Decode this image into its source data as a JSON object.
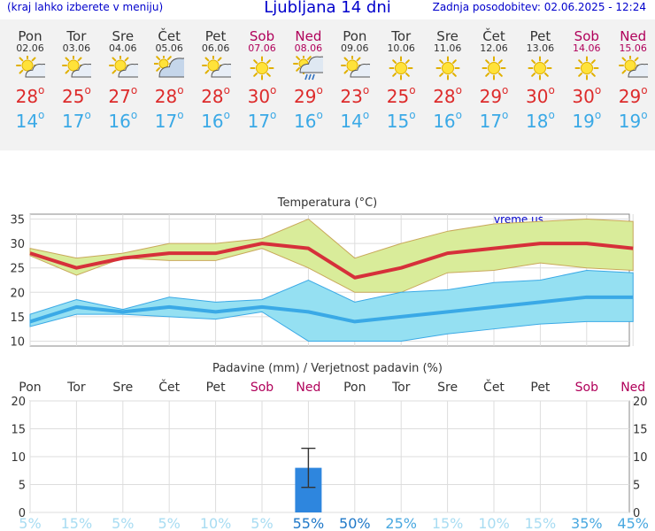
{
  "header": {
    "left_note": "(kraj lahko izberete v meniju)",
    "title": "Ljubljana 14 dni",
    "updated": "Zadnja posodobitev: 02.06.2025 - 12:24"
  },
  "days": [
    {
      "name": "Pon",
      "date": "02.06",
      "weekend": false,
      "icon": "sun-cloud-icon",
      "tmax": "28",
      "tmin": "14"
    },
    {
      "name": "Tor",
      "date": "03.06",
      "weekend": false,
      "icon": "sun-cloud-icon",
      "tmax": "25",
      "tmin": "17"
    },
    {
      "name": "Sre",
      "date": "04.06",
      "weekend": false,
      "icon": "sun-cloud-icon",
      "tmax": "27",
      "tmin": "16"
    },
    {
      "name": "Čet",
      "date": "05.06",
      "weekend": false,
      "icon": "cloud-sun-icon",
      "tmax": "28",
      "tmin": "17"
    },
    {
      "name": "Pet",
      "date": "06.06",
      "weekend": false,
      "icon": "sun-cloud-icon",
      "tmax": "28",
      "tmin": "16"
    },
    {
      "name": "Sob",
      "date": "07.06",
      "weekend": true,
      "icon": "sun-icon",
      "tmax": "30",
      "tmin": "17"
    },
    {
      "name": "Ned",
      "date": "08.06",
      "weekend": true,
      "icon": "rain-cloud-icon",
      "tmax": "29",
      "tmin": "16"
    },
    {
      "name": "Pon",
      "date": "09.06",
      "weekend": false,
      "icon": "sun-cloud-icon",
      "tmax": "23",
      "tmin": "14"
    },
    {
      "name": "Tor",
      "date": "10.06",
      "weekend": false,
      "icon": "sun-icon",
      "tmax": "25",
      "tmin": "15"
    },
    {
      "name": "Sre",
      "date": "11.06",
      "weekend": false,
      "icon": "sun-icon",
      "tmax": "28",
      "tmin": "16"
    },
    {
      "name": "Čet",
      "date": "12.06",
      "weekend": false,
      "icon": "sun-icon",
      "tmax": "29",
      "tmin": "17"
    },
    {
      "name": "Pet",
      "date": "13.06",
      "weekend": false,
      "icon": "sun-icon",
      "tmax": "30",
      "tmin": "18"
    },
    {
      "name": "Sob",
      "date": "14.06",
      "weekend": true,
      "icon": "sun-icon",
      "tmax": "30",
      "tmin": "19"
    },
    {
      "name": "Ned",
      "date": "15.06",
      "weekend": true,
      "icon": "sun-cloud-icon",
      "tmax": "29",
      "tmin": "19"
    }
  ],
  "degree_symbol": "o",
  "colors": {
    "title": "#0000cc",
    "tmax": "#dd2b2b",
    "tmin": "#3aa9e6",
    "weekend": "#b0005a",
    "band_max": "#d9ec9a",
    "band_min": "#95e0f2",
    "bar": "#2e86de"
  },
  "chart_data": [
    {
      "type": "line",
      "title": "Temperatura (°C)",
      "watermark": "vreme.us",
      "ylim": [
        9,
        36
      ],
      "yticks": [
        10,
        15,
        20,
        25,
        30,
        35
      ],
      "grid": true,
      "series": [
        {
          "role": "max_mean",
          "values": [
            28,
            25,
            27,
            28,
            28,
            30,
            29,
            23,
            25,
            28,
            29,
            30,
            30,
            29
          ]
        },
        {
          "role": "max_upper",
          "values": [
            29,
            27,
            28,
            30,
            30,
            31,
            35,
            27,
            30,
            32.5,
            34,
            34.5,
            35,
            34.5
          ]
        },
        {
          "role": "max_lower",
          "values": [
            27.5,
            23.5,
            27,
            26.5,
            26.5,
            29,
            25,
            20,
            20,
            24,
            24.5,
            26,
            25,
            24.5
          ]
        },
        {
          "role": "min_mean",
          "values": [
            14,
            17,
            16,
            17,
            16,
            17,
            16,
            14,
            15,
            16,
            17,
            18,
            19,
            19
          ]
        },
        {
          "role": "min_upper",
          "values": [
            15.5,
            18.5,
            16.5,
            19,
            18,
            18.5,
            22.5,
            18,
            20,
            20.5,
            22,
            22.5,
            24.5,
            24
          ]
        },
        {
          "role": "min_lower",
          "values": [
            13,
            15.5,
            15.5,
            15,
            14.5,
            16,
            10,
            10,
            10,
            11.5,
            12.5,
            13.5,
            14,
            14
          ]
        }
      ]
    },
    {
      "type": "bar",
      "title": "Padavine (mm) / Verjetnost padavin (%)",
      "categories": [
        "Pon",
        "Tor",
        "Sre",
        "Čet",
        "Pet",
        "Sob",
        "Ned",
        "Pon",
        "Tor",
        "Sre",
        "Čet",
        "Pet",
        "Sob",
        "Ned"
      ],
      "weekend": [
        false,
        false,
        false,
        false,
        false,
        true,
        true,
        false,
        false,
        false,
        false,
        false,
        true,
        true
      ],
      "ylim": [
        0,
        20
      ],
      "yticks": [
        0,
        5,
        10,
        15,
        20
      ],
      "values": [
        0,
        0,
        0,
        0,
        0,
        0,
        8,
        0,
        0,
        0,
        0,
        0,
        0,
        0
      ],
      "error": [
        null,
        null,
        null,
        null,
        null,
        null,
        [
          4.5,
          11.5
        ],
        null,
        null,
        null,
        null,
        null,
        null,
        null
      ],
      "probability": [
        "5%",
        "15%",
        "5%",
        "5%",
        "10%",
        "5%",
        "55%",
        "50%",
        "25%",
        "15%",
        "10%",
        "15%",
        "35%",
        "45%"
      ]
    }
  ]
}
